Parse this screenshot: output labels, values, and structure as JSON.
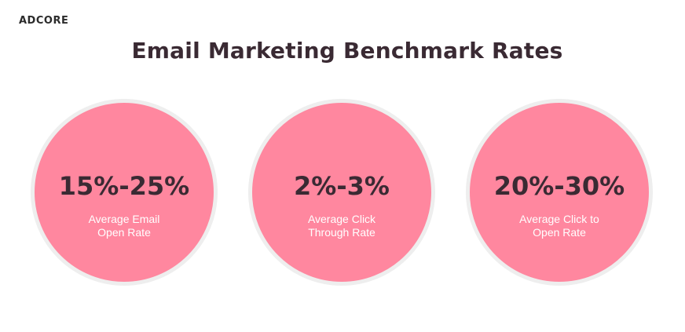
{
  "brand": "ADCORE",
  "title": "Email Marketing Benchmark Rates",
  "colors": {
    "circle_fill": "#ff879f",
    "circle_border": "#eeeeee",
    "text_dark": "#3a2a33",
    "text_light": "#ffffff"
  },
  "stats": [
    {
      "value": "15%-25%",
      "label_line1": "Average Email",
      "label_line2": "Open Rate"
    },
    {
      "value": "2%-3%",
      "label_line1": "Average Click",
      "label_line2": "Through Rate"
    },
    {
      "value": "20%-30%",
      "label_line1": "Average Click to",
      "label_line2": "Open Rate"
    }
  ]
}
